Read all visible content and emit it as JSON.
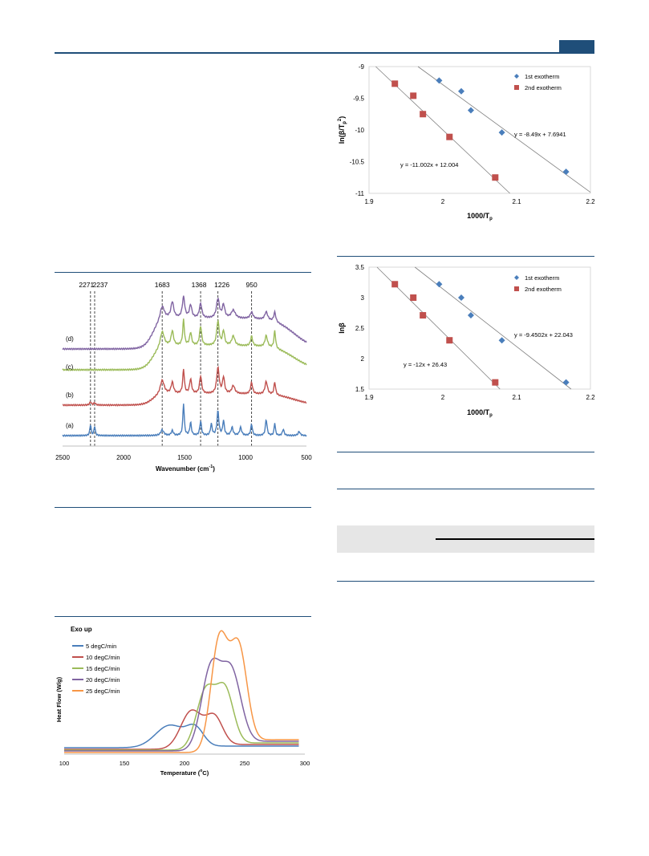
{
  "chart_data": [
    {
      "type": "scatter",
      "ylabel_parts": {
        "pre": "ln(β/T",
        "sub": "p",
        "sup": "2",
        "post": ")"
      },
      "xlabel_parts": {
        "pre": "1000/T",
        "sub": "p"
      },
      "xlim": [
        1.9,
        2.2
      ],
      "ylim": [
        -11,
        -9
      ],
      "xticks": [
        "1.9",
        "2",
        "2.1",
        "2.2"
      ],
      "yticks": [
        "-9",
        "-9.5",
        "-10",
        "-10.5",
        "-11"
      ],
      "series": [
        {
          "name": "1st exotherm",
          "marker": "diamond",
          "color": "#4a7ebb",
          "x": [
            1.995,
            2.025,
            2.038,
            2.08,
            2.167
          ],
          "y": [
            -9.22,
            -9.39,
            -9.69,
            -10.04,
            -10.66
          ],
          "fit": {
            "slope": -8.49,
            "intercept": 7.6941
          },
          "equation": "y = -8.49x + 7.6941"
        },
        {
          "name": "2nd exotherm",
          "marker": "square",
          "color": "#c0504d",
          "x": [
            1.935,
            1.96,
            1.973,
            2.009,
            2.071
          ],
          "y": [
            -9.27,
            -9.46,
            -9.75,
            -10.11,
            -10.75
          ],
          "fit": {
            "slope": -11.002,
            "intercept": 12.004
          },
          "equation": "y = -11.002x + 12.004"
        }
      ]
    },
    {
      "type": "scatter",
      "ylabel": "lnβ",
      "xlabel_parts": {
        "pre": "1000/T",
        "sub": "p"
      },
      "xlim": [
        1.9,
        2.2
      ],
      "ylim": [
        1.5,
        3.5
      ],
      "xticks": [
        "1.9",
        "2",
        "2.1",
        "2.2"
      ],
      "yticks": [
        "3.5",
        "3",
        "2.5",
        "2",
        "1.5"
      ],
      "series": [
        {
          "name": "1st exotherm",
          "marker": "diamond",
          "color": "#4a7ebb",
          "x": [
            1.995,
            2.025,
            2.038,
            2.08,
            2.167
          ],
          "y": [
            3.22,
            3.0,
            2.71,
            2.3,
            1.61
          ],
          "fit": {
            "slope": -9.4502,
            "intercept": 22.043
          },
          "equation": "y = -9.4502x + 22.043"
        },
        {
          "name": "2nd exotherm",
          "marker": "square",
          "color": "#c0504d",
          "x": [
            1.935,
            1.96,
            1.973,
            2.009,
            2.071
          ],
          "y": [
            3.22,
            3.0,
            2.71,
            2.3,
            1.61
          ],
          "fit": {
            "slope": -12,
            "intercept": 26.43
          },
          "equation": "y = -12x + 26.43"
        }
      ]
    },
    {
      "type": "line",
      "xlabel_parts": {
        "pre": "Wavenumber (cm",
        "sup": "-1",
        "post": ")"
      },
      "xlim": [
        2500,
        500
      ],
      "xticks": [
        "2500",
        "2000",
        "1500",
        "1000",
        "500"
      ],
      "peak_labels": [
        "2271",
        "2237",
        "1683",
        "1368",
        "1226",
        "950"
      ],
      "peak_positions": [
        2271,
        2237,
        1683,
        1368,
        1226,
        950
      ],
      "series": [
        {
          "name": "(a)",
          "color": "#4a7ebb"
        },
        {
          "name": "(b)",
          "color": "#c0504d"
        },
        {
          "name": "(c)",
          "color": "#9bbb59"
        },
        {
          "name": "(d)",
          "color": "#8064a2"
        }
      ]
    },
    {
      "type": "line",
      "title": "Exo up",
      "ylabel": "Heat Flow (W/g)",
      "xlabel_parts": {
        "pre": "Temperature (",
        "sup": "o",
        "post": "C)"
      },
      "xlim": [
        100,
        300
      ],
      "xticks": [
        "100",
        "150",
        "200",
        "250",
        "300"
      ],
      "series": [
        {
          "name": "5 degC/min",
          "color": "#4a7ebb",
          "peak1_x": 188,
          "peak2_x": 209
        },
        {
          "name": "10 degC/min",
          "color": "#c0504d",
          "peak1_x": 206,
          "peak2_x": 225
        },
        {
          "name": "15 degC/min",
          "color": "#9bbb59",
          "peak1_x": 218,
          "peak2_x": 234
        },
        {
          "name": "20 degC/min",
          "color": "#8064a2",
          "peak1_x": 222,
          "peak2_x": 239
        },
        {
          "name": "25 degC/min",
          "color": "#f79646",
          "peak1_x": 229,
          "peak2_x": 245
        }
      ]
    }
  ]
}
